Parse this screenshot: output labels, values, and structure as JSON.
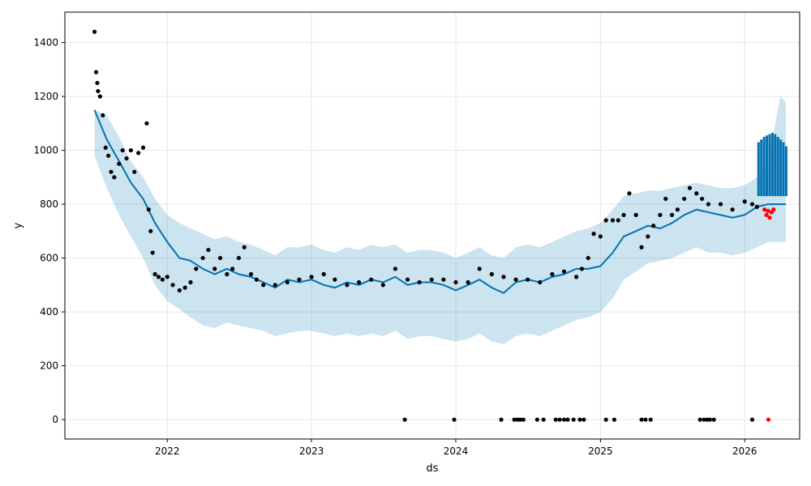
{
  "chart_data": {
    "type": "scatter",
    "title": "",
    "xlabel": "ds",
    "ylabel": "y",
    "xlim": [
      "2021-04-17",
      "2026-05-20"
    ],
    "ylim": [
      -72,
      1513
    ],
    "grid": true,
    "x_ticks": [
      "2022",
      "2023",
      "2024",
      "2025",
      "2026"
    ],
    "y_ticks": [
      0,
      200,
      400,
      600,
      800,
      1000,
      1200,
      1400
    ],
    "colors": {
      "actual": "#000000",
      "recent_actual": "#ff0000",
      "forecast_line": "#0072B2",
      "uncertainty_band": "#0072B2"
    },
    "series": [
      {
        "role": "forecast_line",
        "x": [
          "2021-07-01",
          "2021-08-01",
          "2021-09-01",
          "2021-10-01",
          "2021-11-01",
          "2021-12-01",
          "2022-01-01",
          "2022-02-01",
          "2022-03-01",
          "2022-04-01",
          "2022-05-01",
          "2022-06-01",
          "2022-07-01",
          "2022-08-01",
          "2022-09-01",
          "2022-10-01",
          "2022-11-01",
          "2022-12-01",
          "2023-01-01",
          "2023-02-01",
          "2023-03-01",
          "2023-04-01",
          "2023-05-01",
          "2023-06-01",
          "2023-07-01",
          "2023-08-01",
          "2023-09-01",
          "2023-10-01",
          "2023-11-01",
          "2023-12-01",
          "2024-01-01",
          "2024-02-01",
          "2024-03-01",
          "2024-04-01",
          "2024-05-01",
          "2024-06-01",
          "2024-07-01",
          "2024-08-01",
          "2024-09-01",
          "2024-10-01",
          "2024-11-01",
          "2024-12-01",
          "2025-01-01",
          "2025-02-01",
          "2025-03-01",
          "2025-04-01",
          "2025-05-01",
          "2025-06-01",
          "2025-07-01",
          "2025-08-01",
          "2025-09-01",
          "2025-10-01",
          "2025-11-01",
          "2025-12-01",
          "2026-01-01",
          "2026-02-01",
          "2026-03-01",
          "2026-04-01",
          "2026-04-15"
        ],
        "values": [
          1150,
          1040,
          960,
          880,
          820,
          730,
          660,
          600,
          590,
          560,
          540,
          560,
          540,
          530,
          510,
          490,
          520,
          510,
          520,
          500,
          490,
          510,
          500,
          520,
          510,
          530,
          500,
          510,
          510,
          500,
          480,
          500,
          520,
          490,
          470,
          510,
          520,
          510,
          530,
          540,
          560,
          560,
          570,
          620,
          680,
          700,
          720,
          710,
          730,
          760,
          780,
          770,
          760,
          750,
          760,
          790,
          800,
          800,
          800
        ],
        "band_lower": [
          980,
          860,
          760,
          680,
          600,
          500,
          440,
          410,
          380,
          350,
          340,
          360,
          350,
          340,
          330,
          310,
          320,
          330,
          330,
          320,
          310,
          320,
          310,
          320,
          310,
          330,
          300,
          310,
          310,
          300,
          290,
          300,
          320,
          290,
          280,
          310,
          320,
          310,
          330,
          350,
          370,
          380,
          400,
          450,
          520,
          550,
          580,
          590,
          600,
          620,
          640,
          620,
          620,
          610,
          620,
          640,
          660,
          660,
          660
        ],
        "band_upper": [
          1150,
          1130,
          1050,
          960,
          900,
          820,
          760,
          730,
          710,
          690,
          670,
          680,
          660,
          650,
          630,
          610,
          640,
          640,
          650,
          630,
          620,
          640,
          630,
          650,
          640,
          650,
          620,
          630,
          630,
          620,
          600,
          620,
          640,
          610,
          600,
          640,
          650,
          640,
          660,
          680,
          700,
          710,
          730,
          780,
          830,
          840,
          850,
          850,
          860,
          870,
          880,
          870,
          860,
          860,
          870,
          900,
          950,
          1200,
          1180
        ],
        "forecast_bars_x": [
          "2026-02-05",
          "2026-02-12",
          "2026-02-19",
          "2026-02-26",
          "2026-03-05",
          "2026-03-12",
          "2026-03-19",
          "2026-03-26",
          "2026-04-02",
          "2026-04-09",
          "2026-04-16"
        ],
        "forecast_bars_upper": [
          1030,
          1040,
          1050,
          1055,
          1060,
          1065,
          1060,
          1050,
          1040,
          1030,
          1015
        ],
        "forecast_bars_lower": [
          830,
          830,
          830,
          830,
          830,
          830,
          830,
          830,
          830,
          830,
          830
        ]
      },
      {
        "role": "actual",
        "x": [
          "2021-07-01",
          "2021-07-05",
          "2021-07-08",
          "2021-07-10",
          "2021-07-15",
          "2021-07-22",
          "2021-07-29",
          "2021-08-05",
          "2021-08-12",
          "2021-08-20",
          "2021-09-01",
          "2021-09-10",
          "2021-09-20",
          "2021-10-01",
          "2021-10-10",
          "2021-10-20",
          "2021-11-01",
          "2021-11-10",
          "2021-11-15",
          "2021-11-20",
          "2021-11-25",
          "2021-12-01",
          "2021-12-10",
          "2021-12-20",
          "2022-01-01",
          "2022-01-15",
          "2022-02-01",
          "2022-02-15",
          "2022-03-01",
          "2022-03-15",
          "2022-04-01",
          "2022-04-15",
          "2022-05-01",
          "2022-05-15",
          "2022-06-01",
          "2022-06-15",
          "2022-07-01",
          "2022-07-15",
          "2022-08-01",
          "2022-08-15",
          "2022-09-01",
          "2022-10-01",
          "2022-11-01",
          "2022-12-01",
          "2023-01-01",
          "2023-02-01",
          "2023-03-01",
          "2023-04-01",
          "2023-05-01",
          "2023-06-01",
          "2023-07-01",
          "2023-08-01",
          "2023-09-01",
          "2023-10-01",
          "2023-11-01",
          "2023-12-01",
          "2024-01-01",
          "2024-02-01",
          "2024-03-01",
          "2024-04-01",
          "2024-05-01",
          "2024-06-01",
          "2024-07-01",
          "2024-08-01",
          "2024-09-01",
          "2024-10-01",
          "2024-11-01",
          "2024-11-15",
          "2024-12-01",
          "2024-12-15",
          "2025-01-01",
          "2025-01-15",
          "2025-02-01",
          "2025-02-15",
          "2025-03-01",
          "2025-03-15",
          "2025-04-01",
          "2025-04-15",
          "2025-05-01",
          "2025-05-15",
          "2025-06-01",
          "2025-06-15",
          "2025-07-01",
          "2025-07-15",
          "2025-08-01",
          "2025-08-15",
          "2025-09-01",
          "2025-09-15",
          "2025-10-01",
          "2025-11-01",
          "2025-12-01",
          "2026-01-01",
          "2026-01-20",
          "2026-02-01",
          "2023-08-25",
          "2023-12-28",
          "2024-04-25",
          "2024-05-28",
          "2024-06-05",
          "2024-06-12",
          "2024-06-20",
          "2024-07-25",
          "2024-08-10",
          "2024-09-10",
          "2024-09-20",
          "2024-10-01",
          "2024-10-10",
          "2024-10-25",
          "2024-11-10",
          "2024-11-20",
          "2025-01-15",
          "2025-02-05",
          "2025-04-15",
          "2025-04-25",
          "2025-05-08",
          "2025-09-10",
          "2025-09-20",
          "2025-09-28",
          "2025-10-05",
          "2025-10-15",
          "2026-01-20"
        ],
        "values": [
          1440,
          1290,
          1250,
          1220,
          1200,
          1130,
          1010,
          980,
          920,
          900,
          950,
          1000,
          970,
          1000,
          920,
          990,
          1010,
          1100,
          780,
          700,
          620,
          540,
          530,
          520,
          530,
          500,
          480,
          490,
          510,
          560,
          600,
          630,
          560,
          600,
          540,
          560,
          600,
          640,
          540,
          520,
          500,
          500,
          510,
          520,
          530,
          540,
          520,
          500,
          510,
          520,
          500,
          560,
          520,
          510,
          520,
          520,
          510,
          510,
          560,
          540,
          530,
          520,
          520,
          510,
          540,
          550,
          530,
          560,
          600,
          690,
          680,
          740,
          740,
          740,
          760,
          840,
          760,
          640,
          680,
          720,
          760,
          820,
          760,
          780,
          820,
          860,
          840,
          820,
          800,
          800,
          780,
          810,
          800,
          790,
          0,
          0,
          0,
          0,
          0,
          0,
          0,
          0,
          0,
          0,
          0,
          0,
          0,
          0,
          0,
          0,
          0,
          0,
          0,
          0,
          0,
          0,
          0,
          0,
          0,
          0,
          0
        ]
      },
      {
        "role": "recent_actual",
        "x": [
          "2026-02-20",
          "2026-02-25",
          "2026-03-01",
          "2026-03-05",
          "2026-03-10",
          "2026-03-15",
          "2026-03-02"
        ],
        "values": [
          780,
          760,
          775,
          750,
          770,
          780,
          0
        ]
      }
    ]
  }
}
